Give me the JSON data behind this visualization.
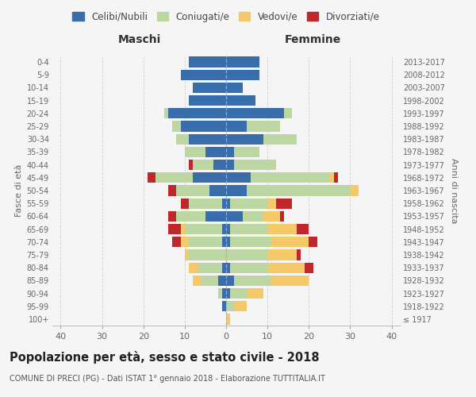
{
  "age_groups": [
    "100+",
    "95-99",
    "90-94",
    "85-89",
    "80-84",
    "75-79",
    "70-74",
    "65-69",
    "60-64",
    "55-59",
    "50-54",
    "45-49",
    "40-44",
    "35-39",
    "30-34",
    "25-29",
    "20-24",
    "15-19",
    "10-14",
    "5-9",
    "0-4"
  ],
  "birth_years": [
    "≤ 1917",
    "1918-1922",
    "1923-1927",
    "1928-1932",
    "1933-1937",
    "1938-1942",
    "1943-1947",
    "1948-1952",
    "1953-1957",
    "1958-1962",
    "1963-1967",
    "1968-1972",
    "1973-1977",
    "1978-1982",
    "1983-1987",
    "1988-1992",
    "1993-1997",
    "1998-2002",
    "2003-2007",
    "2008-2012",
    "2013-2017"
  ],
  "maschi_celibi": [
    0,
    1,
    1,
    2,
    1,
    0,
    1,
    1,
    5,
    1,
    4,
    8,
    3,
    5,
    9,
    11,
    14,
    9,
    8,
    11,
    9
  ],
  "maschi_coniugati": [
    0,
    0,
    1,
    4,
    6,
    9,
    8,
    9,
    7,
    8,
    8,
    9,
    5,
    5,
    3,
    2,
    1,
    0,
    0,
    0,
    0
  ],
  "maschi_vedovi": [
    0,
    0,
    0,
    2,
    2,
    1,
    2,
    1,
    0,
    0,
    0,
    0,
    0,
    0,
    0,
    0,
    0,
    0,
    0,
    0,
    0
  ],
  "maschi_divorziati": [
    0,
    0,
    0,
    0,
    0,
    0,
    2,
    3,
    2,
    2,
    2,
    2,
    1,
    0,
    0,
    0,
    0,
    0,
    0,
    0,
    0
  ],
  "femmine_celibi": [
    0,
    0,
    1,
    2,
    1,
    0,
    1,
    1,
    4,
    1,
    5,
    6,
    2,
    2,
    9,
    5,
    14,
    7,
    4,
    8,
    8
  ],
  "femmine_coniugati": [
    0,
    2,
    4,
    9,
    9,
    10,
    10,
    9,
    5,
    9,
    25,
    19,
    10,
    6,
    8,
    8,
    2,
    0,
    0,
    0,
    0
  ],
  "femmine_vedovi": [
    1,
    3,
    4,
    9,
    9,
    7,
    9,
    7,
    4,
    2,
    2,
    1,
    0,
    0,
    0,
    0,
    0,
    0,
    0,
    0,
    0
  ],
  "femmine_divorziati": [
    0,
    0,
    0,
    0,
    2,
    1,
    2,
    3,
    1,
    4,
    0,
    1,
    0,
    0,
    0,
    0,
    0,
    0,
    0,
    0,
    0
  ],
  "colors": {
    "celibi": "#3a6eab",
    "coniugati": "#bdd7a3",
    "vedovi": "#f5c96a",
    "divorziati": "#c0272d"
  },
  "title": "Popolazione per età, sesso e stato civile - 2018",
  "subtitle": "COMUNE DI PRECI (PG) - Dati ISTAT 1° gennaio 2018 - Elaborazione TUTTITALIA.IT",
  "xlabel_maschi": "Maschi",
  "xlabel_femmine": "Femmine",
  "ylabel": "Fasce di età",
  "ylabel_right": "Anni di nascita",
  "xlim": 42,
  "background_color": "#f5f5f5",
  "grid_color": "#cccccc"
}
